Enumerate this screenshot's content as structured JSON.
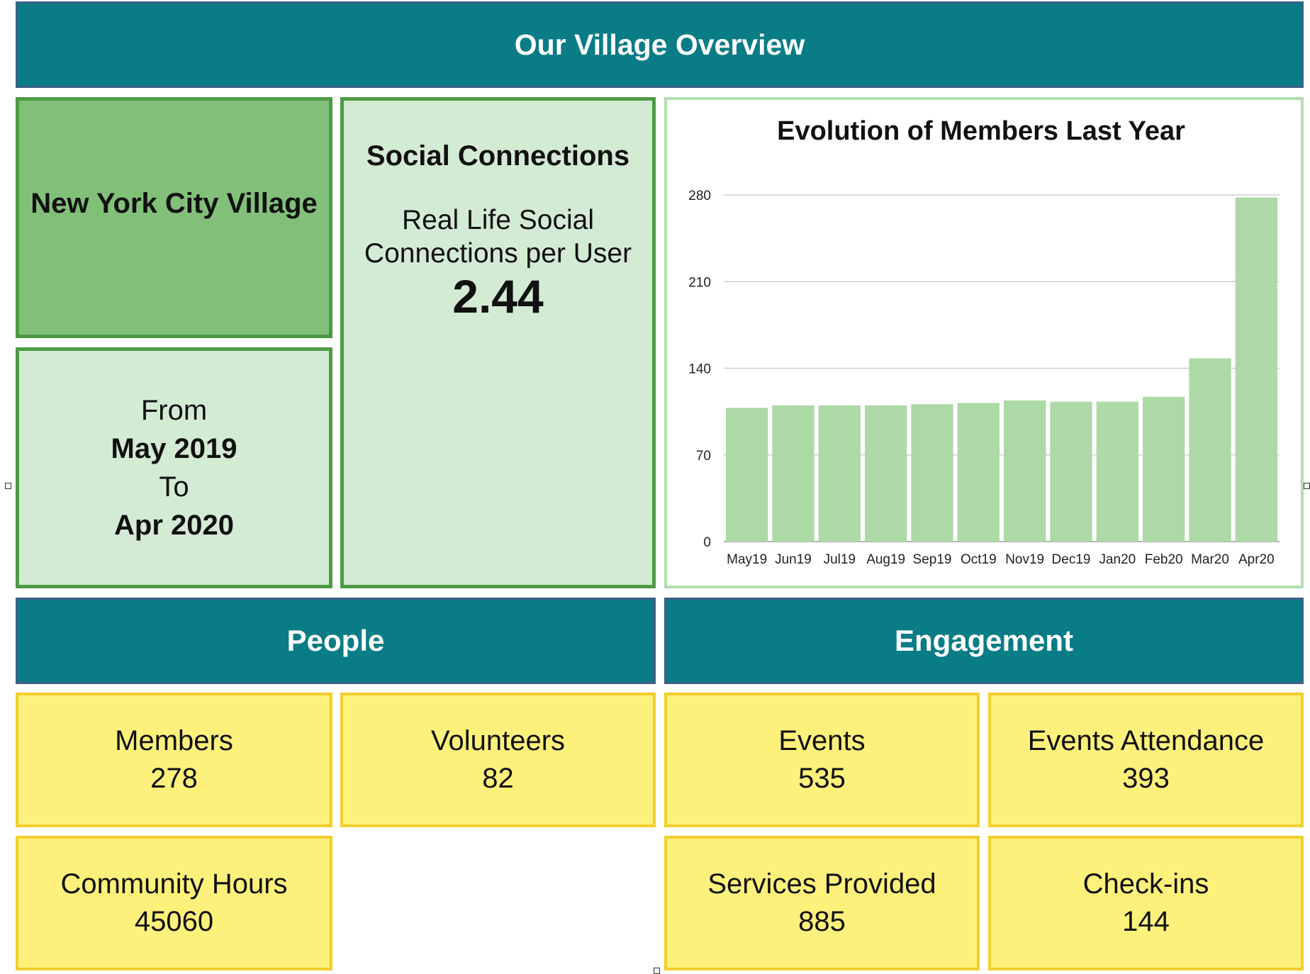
{
  "header": {
    "title": "Our Village Overview"
  },
  "village": {
    "name": "New York City Village",
    "from_label": "From",
    "from_date": "May 2019",
    "to_label": "To",
    "to_date": "Apr 2020"
  },
  "social": {
    "title": "Social Connections",
    "subtitle_line1": "Real Life Social",
    "subtitle_line2": "Connections per User",
    "value": "2.44"
  },
  "sections": {
    "people": "People",
    "engagement": "Engagement"
  },
  "people": {
    "members_label": "Members",
    "members_value": "278",
    "volunteers_label": "Volunteers",
    "volunteers_value": "82",
    "hours_label": "Community Hours",
    "hours_value": "45060"
  },
  "engagement": {
    "events_label": "Events",
    "events_value": "535",
    "attendance_label": "Events Attendance",
    "attendance_value": "393",
    "services_label": "Services Provided",
    "services_value": "885",
    "checkins_label": "Check-ins",
    "checkins_value": "144"
  },
  "colors": {
    "teal": "#0a7c85",
    "bar": "#add9a6",
    "yellow": "#fdf17b",
    "green_dark": "#82c07a",
    "green_light": "#d3ebd3"
  },
  "chart_data": {
    "type": "bar",
    "title": "Evolution of Members Last Year",
    "categories": [
      "May19",
      "Jun19",
      "Jul19",
      "Aug19",
      "Sep19",
      "Oct19",
      "Nov19",
      "Dec19",
      "Jan20",
      "Feb20",
      "Mar20",
      "Apr20"
    ],
    "values": [
      108,
      110,
      110,
      110,
      111,
      112,
      114,
      113,
      113,
      117,
      148,
      278
    ],
    "yticks": [
      0,
      70,
      140,
      210,
      280
    ],
    "ylim": [
      0,
      280
    ],
    "xlabel": "",
    "ylabel": "",
    "grid": true,
    "legend": "none"
  }
}
